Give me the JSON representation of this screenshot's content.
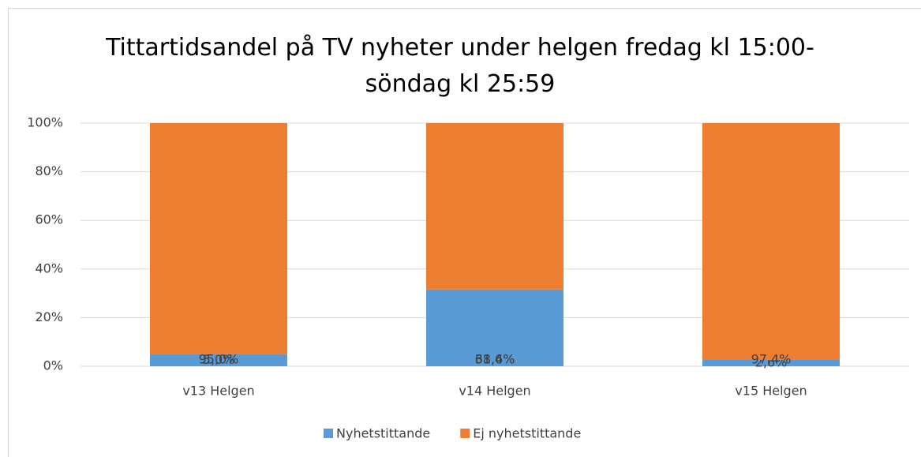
{
  "chart_data": {
    "type": "stacked_bar",
    "title": "Tittartidsandel på TV nyheter under helgen fredag kl 15:00-söndag kl 25:59",
    "categories": [
      "v13 Helgen",
      "v14 Helgen",
      "v15 Helgen"
    ],
    "series": [
      {
        "name": "Nyhetstittande",
        "color": "#5b9bd5",
        "values": [
          5.0,
          31.6,
          2.6
        ],
        "value_labels": [
          "5,0%",
          "31,6%",
          "2,6%"
        ]
      },
      {
        "name": "Ej nyhetstittande",
        "color": "#ed7d31",
        "values": [
          95.0,
          68.4,
          97.4
        ],
        "value_labels": [
          "95,0%",
          "68,4%",
          "97,4%"
        ]
      }
    ],
    "ylim": [
      0,
      100
    ],
    "yticks": [
      {
        "value": 0,
        "label": "0%"
      },
      {
        "value": 20,
        "label": "20%"
      },
      {
        "value": 40,
        "label": "40%"
      },
      {
        "value": 60,
        "label": "60%"
      },
      {
        "value": 80,
        "label": "80%"
      },
      {
        "value": 100,
        "label": "100%"
      }
    ],
    "grid": true,
    "legend": "bottom"
  }
}
